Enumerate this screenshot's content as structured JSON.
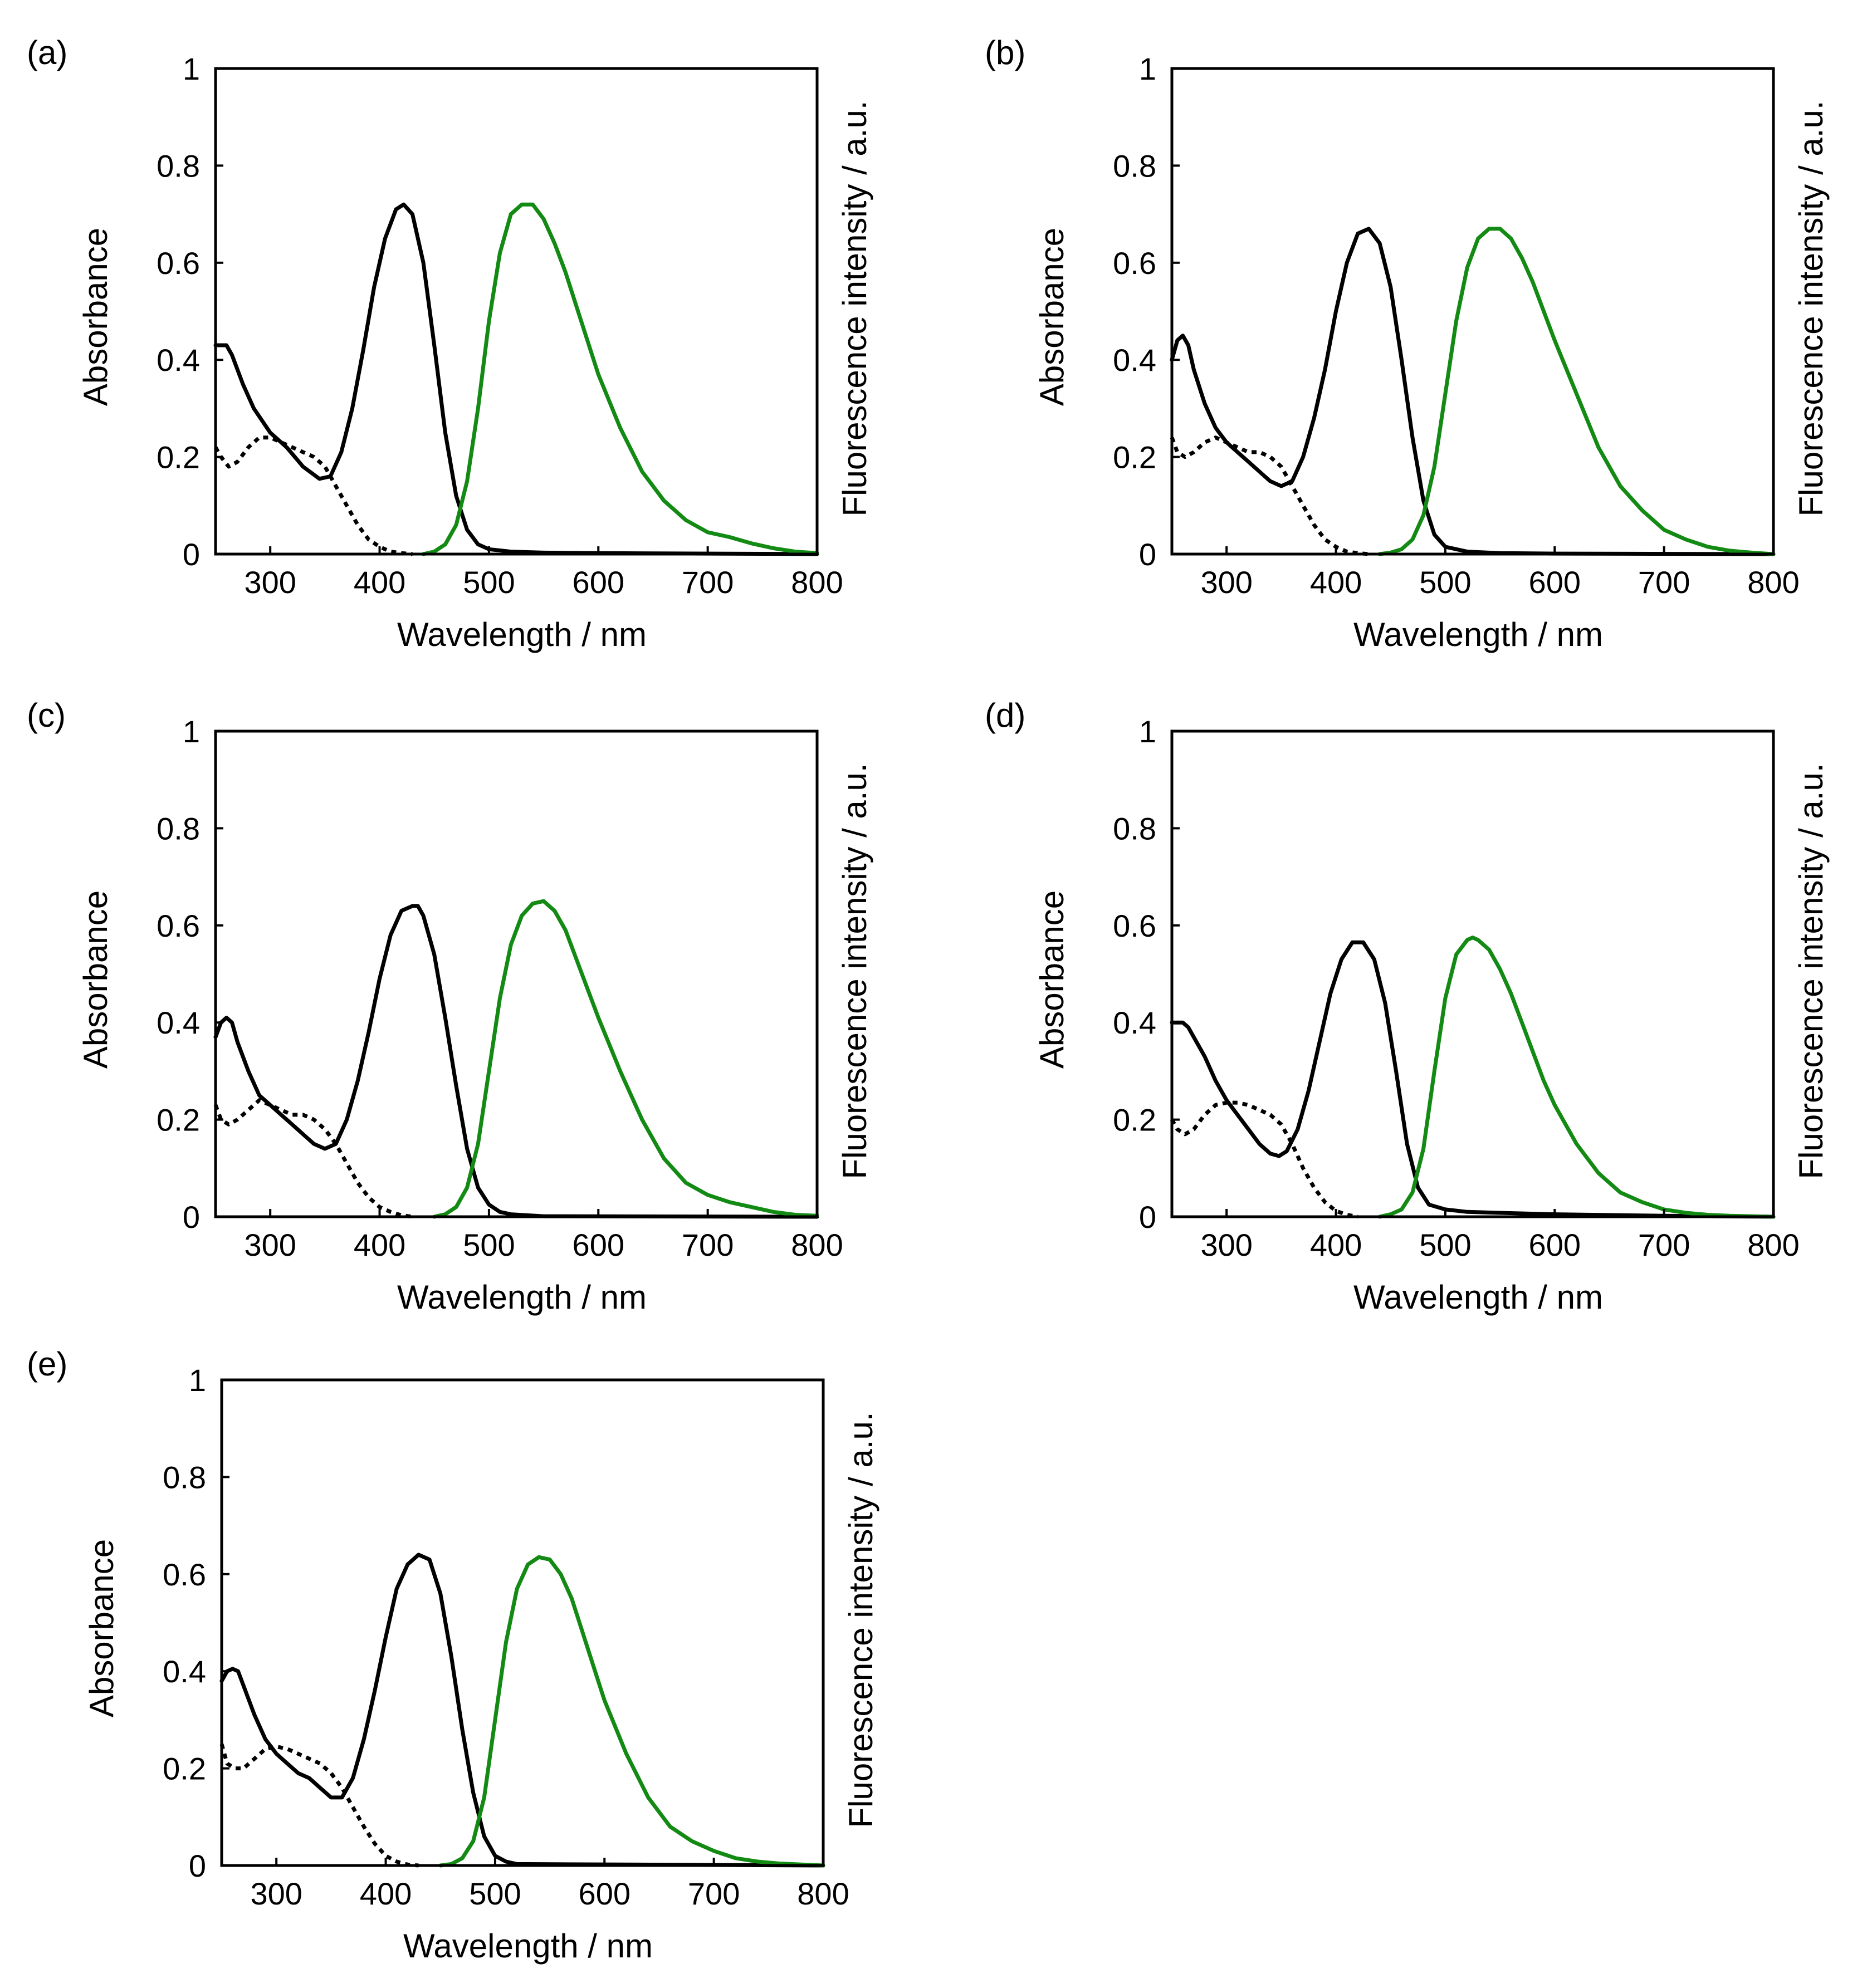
{
  "figure": {
    "line_colors": {
      "absorbance": "#000000",
      "excitation": "#000000",
      "fluorescence": "#138a13"
    }
  },
  "chart_data": [
    {
      "panel": "(a)",
      "type": "line",
      "xlabel": "Wavelength / nm",
      "ylabel": "Absorbance",
      "ylabel_right": "Fluorescence intensity / a.u.",
      "xlim": [
        250,
        800
      ],
      "ylim": [
        0,
        1
      ],
      "xticks": [
        "300",
        "400",
        "500",
        "600",
        "700",
        "800"
      ],
      "yticks": [
        "0",
        "0.2",
        "0.4",
        "0.6",
        "0.8",
        "1"
      ],
      "grid": false,
      "series": [
        {
          "kind": "absorbance",
          "style": "solid",
          "color": "#000000",
          "x": [
            250,
            260,
            265,
            275,
            285,
            300,
            315,
            330,
            345,
            355,
            365,
            375,
            385,
            395,
            405,
            415,
            422,
            430,
            440,
            450,
            460,
            470,
            480,
            490,
            500,
            520,
            550,
            600,
            700,
            800
          ],
          "y": [
            0.43,
            0.43,
            0.41,
            0.35,
            0.3,
            0.25,
            0.22,
            0.18,
            0.155,
            0.16,
            0.21,
            0.3,
            0.42,
            0.55,
            0.65,
            0.71,
            0.72,
            0.7,
            0.6,
            0.43,
            0.25,
            0.12,
            0.05,
            0.02,
            0.01,
            0.005,
            0.003,
            0.002,
            0.001,
            0.0
          ]
        },
        {
          "kind": "excitation",
          "style": "dotted",
          "color": "#000000",
          "x": [
            250,
            255,
            262,
            270,
            280,
            290,
            300,
            310,
            320,
            330,
            340,
            350,
            360,
            370,
            380,
            390,
            400,
            410,
            420,
            430
          ],
          "y": [
            0.22,
            0.2,
            0.18,
            0.19,
            0.22,
            0.24,
            0.24,
            0.23,
            0.22,
            0.21,
            0.2,
            0.18,
            0.14,
            0.1,
            0.06,
            0.03,
            0.015,
            0.005,
            0.002,
            0.0
          ]
        },
        {
          "kind": "fluorescence",
          "style": "solid",
          "color": "#138a13",
          "x": [
            440,
            450,
            460,
            470,
            480,
            490,
            500,
            510,
            520,
            530,
            540,
            550,
            560,
            570,
            580,
            590,
            600,
            620,
            640,
            660,
            680,
            700,
            720,
            740,
            760,
            780,
            800
          ],
          "y": [
            0,
            0.005,
            0.02,
            0.06,
            0.15,
            0.3,
            0.48,
            0.62,
            0.7,
            0.72,
            0.72,
            0.69,
            0.64,
            0.58,
            0.51,
            0.44,
            0.37,
            0.26,
            0.17,
            0.11,
            0.07,
            0.045,
            0.035,
            0.022,
            0.012,
            0.005,
            0.002
          ]
        }
      ]
    },
    {
      "panel": "(b)",
      "type": "line",
      "xlabel": "Wavelength / nm",
      "ylabel": "Absorbance",
      "ylabel_right": "Fluorescence intensity / a.u.",
      "xlim": [
        250,
        800
      ],
      "ylim": [
        0,
        1
      ],
      "xticks": [
        "300",
        "400",
        "500",
        "600",
        "700",
        "800"
      ],
      "yticks": [
        "0",
        "0.2",
        "0.4",
        "0.6",
        "0.8",
        "1"
      ],
      "grid": false,
      "series": [
        {
          "kind": "absorbance",
          "style": "solid",
          "color": "#000000",
          "x": [
            250,
            255,
            260,
            265,
            270,
            280,
            290,
            300,
            310,
            320,
            330,
            340,
            350,
            360,
            370,
            380,
            390,
            400,
            410,
            420,
            430,
            440,
            450,
            460,
            470,
            480,
            490,
            500,
            520,
            550,
            600,
            800
          ],
          "y": [
            0.4,
            0.44,
            0.45,
            0.43,
            0.38,
            0.31,
            0.26,
            0.23,
            0.21,
            0.19,
            0.17,
            0.15,
            0.14,
            0.15,
            0.2,
            0.28,
            0.38,
            0.5,
            0.6,
            0.66,
            0.67,
            0.64,
            0.55,
            0.4,
            0.24,
            0.11,
            0.04,
            0.015,
            0.005,
            0.002,
            0.001,
            0.0
          ]
        },
        {
          "kind": "excitation",
          "style": "dotted",
          "color": "#000000",
          "x": [
            250,
            255,
            262,
            270,
            280,
            290,
            300,
            310,
            320,
            330,
            340,
            350,
            360,
            370,
            380,
            390,
            400,
            410,
            420,
            430
          ],
          "y": [
            0.24,
            0.21,
            0.2,
            0.21,
            0.23,
            0.24,
            0.23,
            0.22,
            0.21,
            0.21,
            0.2,
            0.18,
            0.14,
            0.1,
            0.06,
            0.03,
            0.015,
            0.005,
            0.002,
            0.0
          ]
        },
        {
          "kind": "fluorescence",
          "style": "solid",
          "color": "#138a13",
          "x": [
            440,
            450,
            460,
            470,
            480,
            490,
            500,
            510,
            520,
            530,
            540,
            550,
            560,
            570,
            580,
            590,
            600,
            620,
            640,
            660,
            680,
            700,
            720,
            740,
            760,
            780,
            800
          ],
          "y": [
            0,
            0.003,
            0.01,
            0.03,
            0.08,
            0.18,
            0.33,
            0.48,
            0.59,
            0.65,
            0.67,
            0.67,
            0.65,
            0.61,
            0.56,
            0.5,
            0.44,
            0.33,
            0.22,
            0.14,
            0.09,
            0.05,
            0.03,
            0.015,
            0.007,
            0.003,
            0.0
          ]
        }
      ]
    },
    {
      "panel": "(c)",
      "type": "line",
      "xlabel": "Wavelength / nm",
      "ylabel": "Absorbance",
      "ylabel_right": "Fluorescence intensity / a.u.",
      "xlim": [
        250,
        800
      ],
      "ylim": [
        0,
        1
      ],
      "xticks": [
        "300",
        "400",
        "500",
        "600",
        "700",
        "800"
      ],
      "yticks": [
        "0",
        "0.2",
        "0.4",
        "0.6",
        "0.8",
        "1"
      ],
      "grid": false,
      "series": [
        {
          "kind": "absorbance",
          "style": "solid",
          "color": "#000000",
          "x": [
            250,
            255,
            260,
            265,
            270,
            280,
            290,
            300,
            310,
            320,
            330,
            340,
            350,
            360,
            370,
            380,
            390,
            400,
            410,
            420,
            430,
            435,
            440,
            450,
            460,
            470,
            480,
            490,
            500,
            510,
            520,
            550,
            800
          ],
          "y": [
            0.37,
            0.4,
            0.41,
            0.4,
            0.36,
            0.3,
            0.25,
            0.23,
            0.21,
            0.19,
            0.17,
            0.15,
            0.14,
            0.15,
            0.2,
            0.28,
            0.38,
            0.49,
            0.58,
            0.63,
            0.64,
            0.64,
            0.62,
            0.54,
            0.41,
            0.27,
            0.14,
            0.06,
            0.025,
            0.01,
            0.005,
            0.001,
            0.0
          ]
        },
        {
          "kind": "excitation",
          "style": "dotted",
          "color": "#000000",
          "x": [
            250,
            255,
            262,
            270,
            280,
            290,
            300,
            310,
            320,
            330,
            340,
            350,
            360,
            370,
            380,
            390,
            400,
            410,
            420,
            430
          ],
          "y": [
            0.23,
            0.2,
            0.19,
            0.2,
            0.22,
            0.24,
            0.23,
            0.22,
            0.21,
            0.21,
            0.2,
            0.18,
            0.15,
            0.11,
            0.07,
            0.04,
            0.02,
            0.01,
            0.003,
            0.0
          ]
        },
        {
          "kind": "fluorescence",
          "style": "solid",
          "color": "#138a13",
          "x": [
            450,
            460,
            470,
            480,
            490,
            500,
            510,
            520,
            530,
            540,
            550,
            560,
            570,
            580,
            590,
            600,
            620,
            640,
            660,
            680,
            700,
            720,
            740,
            760,
            780,
            800
          ],
          "y": [
            0,
            0.005,
            0.02,
            0.06,
            0.15,
            0.3,
            0.45,
            0.56,
            0.62,
            0.645,
            0.65,
            0.63,
            0.59,
            0.53,
            0.47,
            0.41,
            0.3,
            0.2,
            0.12,
            0.07,
            0.045,
            0.03,
            0.02,
            0.01,
            0.004,
            0.002
          ]
        }
      ]
    },
    {
      "panel": "(d)",
      "type": "line",
      "xlabel": "Wavelength / nm",
      "ylabel": "Absorbance",
      "ylabel_right": "Fluorescence intensity / a.u.",
      "xlim": [
        250,
        800
      ],
      "ylim": [
        0,
        1
      ],
      "xticks": [
        "300",
        "400",
        "500",
        "600",
        "700",
        "800"
      ],
      "yticks": [
        "0",
        "0.2",
        "0.4",
        "0.6",
        "0.8",
        "1"
      ],
      "grid": false,
      "series": [
        {
          "kind": "absorbance",
          "style": "solid",
          "color": "#000000",
          "x": [
            250,
            260,
            265,
            270,
            280,
            290,
            300,
            310,
            320,
            330,
            340,
            348,
            355,
            365,
            375,
            385,
            395,
            405,
            415,
            425,
            435,
            445,
            455,
            465,
            475,
            485,
            500,
            520,
            550,
            600,
            700,
            800
          ],
          "y": [
            0.4,
            0.4,
            0.39,
            0.37,
            0.33,
            0.28,
            0.24,
            0.21,
            0.18,
            0.15,
            0.13,
            0.125,
            0.135,
            0.18,
            0.26,
            0.36,
            0.46,
            0.53,
            0.565,
            0.565,
            0.53,
            0.44,
            0.3,
            0.15,
            0.06,
            0.025,
            0.015,
            0.01,
            0.008,
            0.005,
            0.002,
            0.0
          ]
        },
        {
          "kind": "excitation",
          "style": "dotted",
          "color": "#000000",
          "x": [
            250,
            255,
            262,
            270,
            280,
            290,
            300,
            310,
            320,
            330,
            340,
            350,
            360,
            370,
            380,
            390,
            400,
            410,
            420
          ],
          "y": [
            0.2,
            0.18,
            0.17,
            0.18,
            0.21,
            0.23,
            0.235,
            0.235,
            0.23,
            0.22,
            0.21,
            0.19,
            0.15,
            0.1,
            0.06,
            0.03,
            0.012,
            0.004,
            0.0
          ]
        },
        {
          "kind": "fluorescence",
          "style": "solid",
          "color": "#138a13",
          "x": [
            440,
            450,
            460,
            470,
            480,
            490,
            500,
            510,
            520,
            525,
            530,
            540,
            550,
            560,
            570,
            580,
            590,
            600,
            620,
            640,
            660,
            680,
            700,
            720,
            740,
            760,
            780,
            800
          ],
          "y": [
            0,
            0.005,
            0.015,
            0.05,
            0.14,
            0.3,
            0.45,
            0.54,
            0.57,
            0.575,
            0.57,
            0.55,
            0.51,
            0.46,
            0.4,
            0.34,
            0.28,
            0.23,
            0.15,
            0.09,
            0.05,
            0.03,
            0.015,
            0.008,
            0.004,
            0.002,
            0.001,
            0.0
          ]
        }
      ]
    },
    {
      "panel": "(e)",
      "type": "line",
      "xlabel": "Wavelength / nm",
      "ylabel": "Absorbance",
      "ylabel_right": "Fluorescence intensity / a.u.",
      "xlim": [
        250,
        800
      ],
      "ylim": [
        0,
        1
      ],
      "xticks": [
        "300",
        "400",
        "500",
        "600",
        "700",
        "800"
      ],
      "yticks": [
        "0",
        "0.2",
        "0.4",
        "0.6",
        "0.8",
        "1"
      ],
      "grid": false,
      "series": [
        {
          "kind": "absorbance",
          "style": "solid",
          "color": "#000000",
          "x": [
            250,
            255,
            260,
            265,
            270,
            280,
            290,
            300,
            310,
            320,
            330,
            340,
            350,
            360,
            370,
            380,
            390,
            400,
            410,
            420,
            430,
            440,
            450,
            460,
            470,
            480,
            490,
            500,
            510,
            520,
            800
          ],
          "y": [
            0.38,
            0.4,
            0.405,
            0.4,
            0.37,
            0.31,
            0.26,
            0.23,
            0.21,
            0.19,
            0.18,
            0.16,
            0.14,
            0.14,
            0.18,
            0.26,
            0.36,
            0.47,
            0.57,
            0.62,
            0.64,
            0.63,
            0.56,
            0.43,
            0.28,
            0.15,
            0.06,
            0.02,
            0.008,
            0.003,
            0.0
          ]
        },
        {
          "kind": "excitation",
          "style": "dotted",
          "color": "#000000",
          "x": [
            250,
            255,
            262,
            270,
            280,
            290,
            300,
            310,
            320,
            330,
            340,
            350,
            360,
            370,
            380,
            390,
            400,
            410,
            420,
            430
          ],
          "y": [
            0.25,
            0.21,
            0.2,
            0.2,
            0.22,
            0.24,
            0.245,
            0.24,
            0.23,
            0.22,
            0.21,
            0.19,
            0.16,
            0.12,
            0.08,
            0.045,
            0.02,
            0.008,
            0.002,
            0.0
          ]
        },
        {
          "kind": "fluorescence",
          "style": "solid",
          "color": "#138a13",
          "x": [
            450,
            460,
            470,
            480,
            490,
            500,
            510,
            520,
            530,
            540,
            550,
            560,
            570,
            580,
            590,
            600,
            620,
            640,
            660,
            680,
            700,
            720,
            740,
            760,
            780,
            800
          ],
          "y": [
            0,
            0.003,
            0.015,
            0.05,
            0.14,
            0.3,
            0.46,
            0.57,
            0.62,
            0.635,
            0.63,
            0.6,
            0.55,
            0.48,
            0.41,
            0.34,
            0.23,
            0.14,
            0.08,
            0.05,
            0.03,
            0.015,
            0.008,
            0.004,
            0.002,
            0.0
          ]
        }
      ]
    }
  ]
}
